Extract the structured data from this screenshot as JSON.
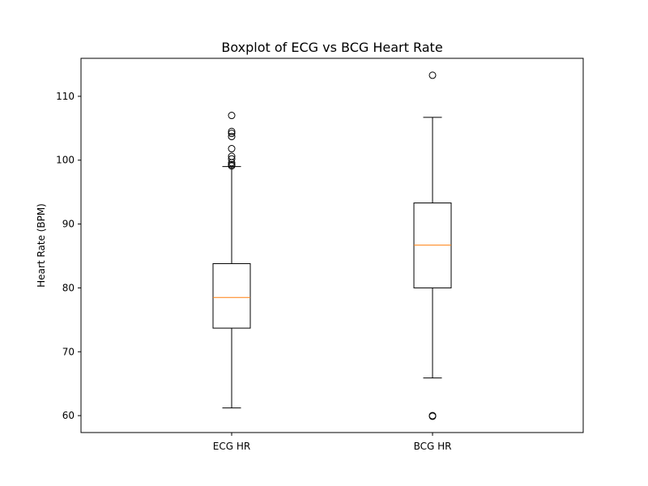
{
  "chart_data": {
    "type": "boxplot",
    "title": "Boxplot of ECG vs BCG Heart Rate",
    "xlabel": "",
    "ylabel": "Heart Rate (BPM)",
    "ylim": [
      57.35,
      115.95
    ],
    "yticks": [
      60,
      70,
      80,
      90,
      100,
      110
    ],
    "categories": [
      "ECG HR",
      "BCG HR"
    ],
    "grid": false,
    "box_color": "#000000",
    "median_color": "#ff7f0e",
    "boxes": [
      {
        "label": "ECG HR",
        "whisker_low": 61.2,
        "q1": 73.7,
        "median": 78.5,
        "q3": 83.8,
        "whisker_high": 99.0,
        "outliers": [
          99.1,
          99.3,
          99.6,
          100.2,
          100.6,
          101.8,
          103.7,
          104.2,
          104.5,
          107.0
        ]
      },
      {
        "label": "BCG HR",
        "whisker_low": 65.9,
        "q1": 80.0,
        "median": 86.7,
        "q3": 93.3,
        "whisker_high": 106.7,
        "outliers": [
          59.9,
          60.0,
          113.3
        ]
      }
    ]
  }
}
